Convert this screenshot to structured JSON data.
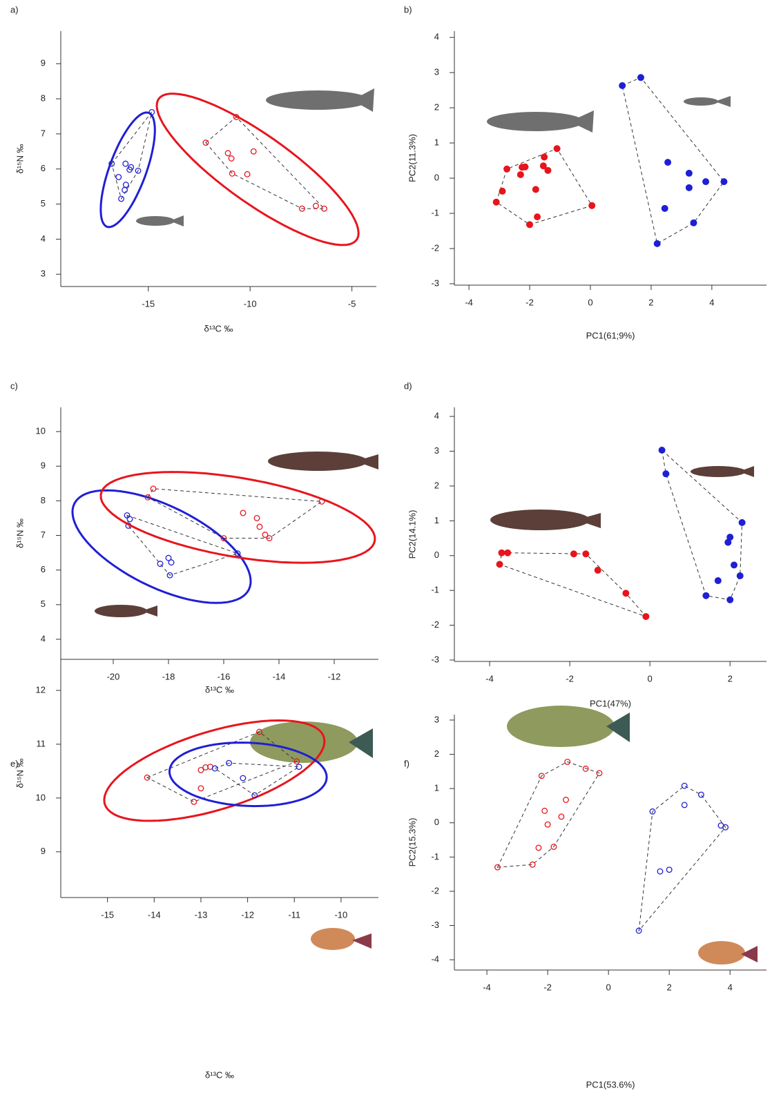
{
  "chart_data": [
    {
      "type": "scatter",
      "panel": "a)",
      "xlabel": "δ¹³C ‰",
      "ylabel": "δ¹⁵N ‰",
      "xlim": [
        -19.3,
        -3.8
      ],
      "ylim": [
        2.65,
        9.93
      ],
      "xticks": [
        -15,
        -10,
        -5
      ],
      "yticks": [
        3,
        4,
        5,
        6,
        7,
        8,
        9
      ],
      "marker": "open",
      "ellipse": true,
      "hull": true,
      "series": [
        {
          "color": "#1f1fd6",
          "x": [
            -16.8,
            -14.83,
            -16.12,
            -15.85,
            -15.92,
            -15.5,
            -16.46,
            -16.1,
            -16.16,
            -16.33
          ],
          "y": [
            6.15,
            7.62,
            6.15,
            6.05,
            5.98,
            5.95,
            5.77,
            5.55,
            5.4,
            5.15
          ]
        },
        {
          "color": "#e8141c",
          "x": [
            -12.18,
            -10.68,
            -11.09,
            -10.92,
            -9.83,
            -10.88,
            -10.14,
            -7.45,
            -6.77,
            -6.36
          ],
          "y": [
            6.75,
            7.48,
            6.45,
            6.3,
            6.5,
            5.87,
            5.85,
            4.87,
            4.95,
            4.87
          ]
        }
      ]
    },
    {
      "type": "scatter",
      "panel": "b)",
      "xlabel": "PC1(61;9%)",
      "ylabel": "PC2(11.3%)",
      "xlim": [
        -4.48,
        5.8
      ],
      "ylim": [
        -3.04,
        4.18
      ],
      "xticks": [
        -4,
        -2,
        0,
        2,
        4
      ],
      "yticks": [
        -3,
        -2,
        -1,
        0,
        1,
        2,
        3,
        4
      ],
      "marker": "filled",
      "ellipse": false,
      "hull": true,
      "series": [
        {
          "color": "#e8141c",
          "x": [
            -3.1,
            -2.9,
            -2.75,
            -2.25,
            -2.15,
            -2.3,
            -1.1,
            -1.52,
            -1.55,
            -1.4,
            -1.8,
            -1.75,
            -2.0,
            0.05
          ],
          "y": [
            -0.68,
            -0.37,
            0.26,
            0.31,
            0.32,
            0.1,
            0.84,
            0.6,
            0.35,
            0.22,
            -0.32,
            -1.1,
            -1.32,
            -0.78
          ]
        },
        {
          "color": "#1f1fd6",
          "x": [
            1.05,
            1.66,
            2.55,
            3.25,
            3.25,
            3.8,
            4.4,
            2.45,
            3.4,
            2.2
          ],
          "y": [
            2.63,
            2.86,
            0.45,
            0.14,
            -0.27,
            -0.1,
            -0.1,
            -0.86,
            -1.27,
            -1.86
          ]
        }
      ]
    },
    {
      "type": "scatter",
      "panel": "c)",
      "xlabel": "δ¹³C ‰",
      "ylabel": "δ¹⁵N ‰",
      "xlim": [
        -21.9,
        -10.4
      ],
      "ylim": [
        3.42,
        10.7
      ],
      "xticks": [
        -20,
        -18,
        -16,
        -14,
        -12
      ],
      "yticks": [
        4,
        5,
        6,
        7,
        8,
        9,
        10
      ],
      "marker": "open",
      "ellipse": true,
      "hull": true,
      "series": [
        {
          "color": "#1f1fd6",
          "x": [
            -19.5,
            -19.4,
            -19.45,
            -18.3,
            -18.0,
            -17.9,
            -17.95,
            -15.5
          ],
          "y": [
            7.58,
            7.47,
            7.28,
            6.18,
            6.35,
            6.22,
            5.85,
            6.48
          ]
        },
        {
          "color": "#e8141c",
          "x": [
            -18.55,
            -18.75,
            -16.0,
            -15.3,
            -14.8,
            -14.7,
            -14.5,
            -14.35,
            -12.45
          ],
          "y": [
            8.35,
            8.1,
            6.92,
            7.65,
            7.5,
            7.25,
            7.02,
            6.92,
            7.98
          ]
        }
      ]
    },
    {
      "type": "scatter",
      "panel": "d)",
      "xlabel": "PC1(47%)",
      "ylabel": "PC2(14.1%)",
      "xlim": [
        -4.88,
        2.91
      ],
      "ylim": [
        -3.04,
        4.26
      ],
      "xticks": [
        -4,
        -2,
        0,
        2
      ],
      "yticks": [
        -3,
        -2,
        -1,
        0,
        1,
        2,
        3,
        4
      ],
      "marker": "filled",
      "ellipse": false,
      "hull": true,
      "series": [
        {
          "color": "#e8141c",
          "x": [
            -3.7,
            -3.55,
            -3.75,
            -1.9,
            -1.6,
            -1.3,
            -0.6,
            -0.1
          ],
          "y": [
            0.08,
            0.08,
            -0.25,
            0.05,
            0.05,
            -0.42,
            -1.08,
            -1.75
          ]
        },
        {
          "color": "#1f1fd6",
          "x": [
            0.3,
            0.4,
            2.3,
            2.0,
            1.95,
            2.1,
            1.7,
            2.25,
            1.4,
            2.0
          ],
          "y": [
            3.03,
            2.35,
            0.95,
            0.53,
            0.38,
            -0.27,
            -0.72,
            -0.58,
            -1.15,
            -1.27
          ]
        }
      ]
    },
    {
      "type": "scatter",
      "panel": "e)",
      "xlabel": "δ¹³C ‰",
      "ylabel": "δ¹⁵N ‰",
      "xlim": [
        -16.0,
        -9.2
      ],
      "ylim": [
        8.15,
        12.77
      ],
      "xticks": [
        -15,
        -14,
        -13,
        -12,
        -11,
        -10
      ],
      "yticks": [
        9,
        10,
        11,
        12
      ],
      "marker": "open",
      "ellipse": true,
      "hull": true,
      "series": [
        {
          "color": "#e8141c",
          "x": [
            -14.15,
            -13.15,
            -13.0,
            -13.0,
            -12.9,
            -12.8,
            -11.75,
            -10.95
          ],
          "y": [
            10.38,
            9.93,
            10.18,
            10.52,
            10.57,
            10.58,
            11.23,
            10.68
          ]
        },
        {
          "color": "#1f1fd6",
          "x": [
            -12.7,
            -12.4,
            -12.1,
            -11.85,
            -10.9
          ],
          "y": [
            10.55,
            10.65,
            10.37,
            10.05,
            10.58
          ]
        }
      ]
    },
    {
      "type": "scatter",
      "panel": "f)",
      "xlabel": "PC1(53.6%)",
      "ylabel": "PC2(15.3%)",
      "xlim": [
        -5.07,
        5.2
      ],
      "ylim": [
        -4.3,
        3.16
      ],
      "xticks": [
        -4,
        -2,
        0,
        2,
        4
      ],
      "yticks": [
        -4,
        -3,
        -2,
        -1,
        0,
        1,
        2,
        3
      ],
      "marker": "open",
      "ellipse": false,
      "hull": true,
      "series": [
        {
          "color": "#e8141c",
          "x": [
            -3.65,
            -2.5,
            -2.3,
            -1.8,
            -2.0,
            -2.1,
            -1.55,
            -1.4,
            -2.2,
            -1.35,
            -0.75,
            -0.3
          ],
          "y": [
            -1.3,
            -1.22,
            -0.73,
            -0.7,
            -0.05,
            0.35,
            0.18,
            0.67,
            1.37,
            1.78,
            1.58,
            1.45
          ]
        },
        {
          "color": "#1f1fd6",
          "x": [
            1.45,
            2.5,
            2.5,
            3.05,
            3.7,
            3.85,
            1.7,
            2.0,
            1.0
          ],
          "y": [
            0.33,
            1.08,
            0.52,
            0.82,
            -0.08,
            -0.13,
            -1.42,
            -1.37,
            -3.15
          ]
        }
      ]
    }
  ]
}
